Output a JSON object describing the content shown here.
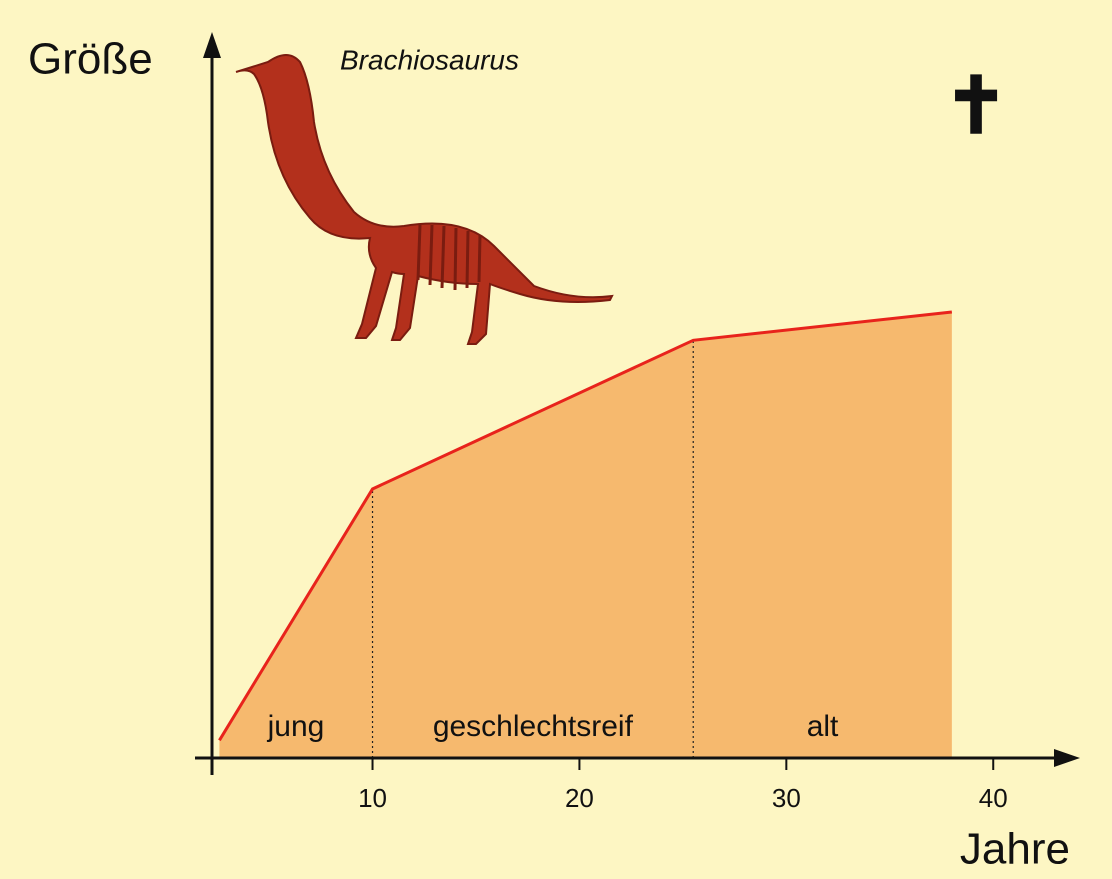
{
  "chart_data": {
    "type": "area",
    "title": "Brachiosaurus",
    "y_label": "Größe",
    "x_label": "Jahre",
    "death_marker": "✝",
    "x": [
      2.6,
      10,
      25.5,
      38
    ],
    "values": [
      2.5,
      38,
      59,
      63
    ],
    "line_color": "#e8231c",
    "fill_color": "#f6b96e",
    "xlim": [
      2,
      44
    ],
    "xticks": [
      10,
      20,
      30,
      40
    ],
    "ylim": [
      0,
      100
    ],
    "phase_boundaries": [
      10,
      25.5
    ],
    "phases": [
      "jung",
      "geschlechtsreif",
      "alt"
    ]
  }
}
